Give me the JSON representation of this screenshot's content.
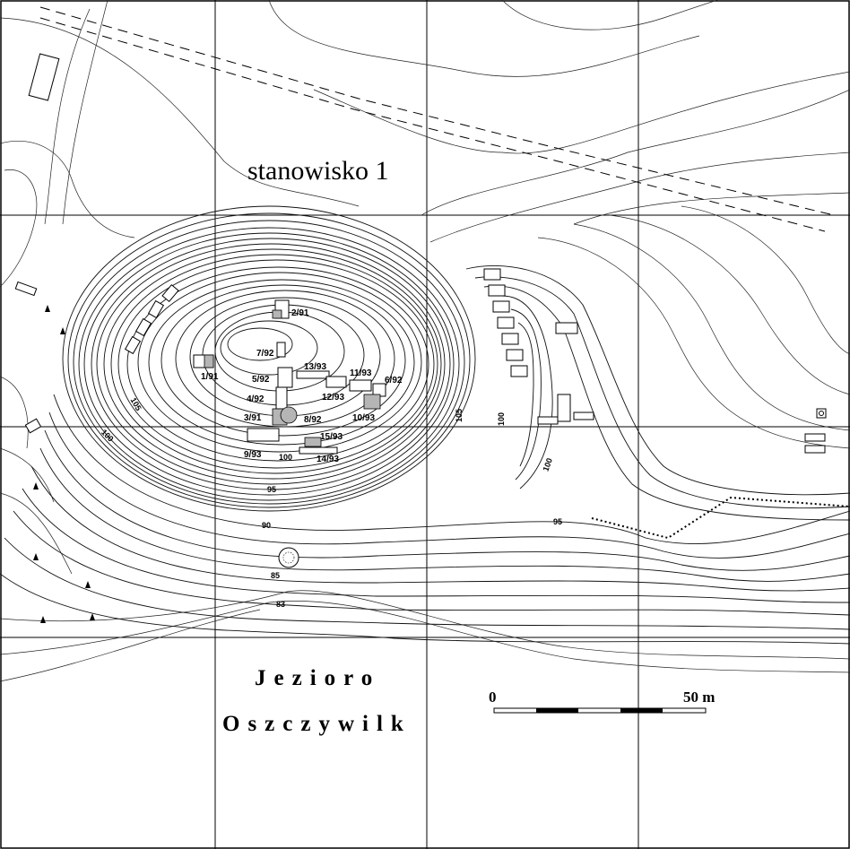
{
  "map": {
    "site_label": "stanowisko 1",
    "lake_line1": "Jezioro",
    "lake_line2": "Oszczywilk",
    "scale": {
      "start": "0",
      "end": "50 m"
    },
    "contours": [
      "105",
      "100",
      "95",
      "90",
      "85",
      "83",
      "105",
      "100",
      "100",
      "95",
      "100",
      "103"
    ],
    "trenches": [
      "2/91",
      "7/92",
      "13/93",
      "11/93",
      "6/92",
      "1/91",
      "5/92",
      "12/93",
      "4/92",
      "3/91",
      "8/92",
      "10/93",
      "15/93",
      "9/93",
      "14/93"
    ]
  }
}
